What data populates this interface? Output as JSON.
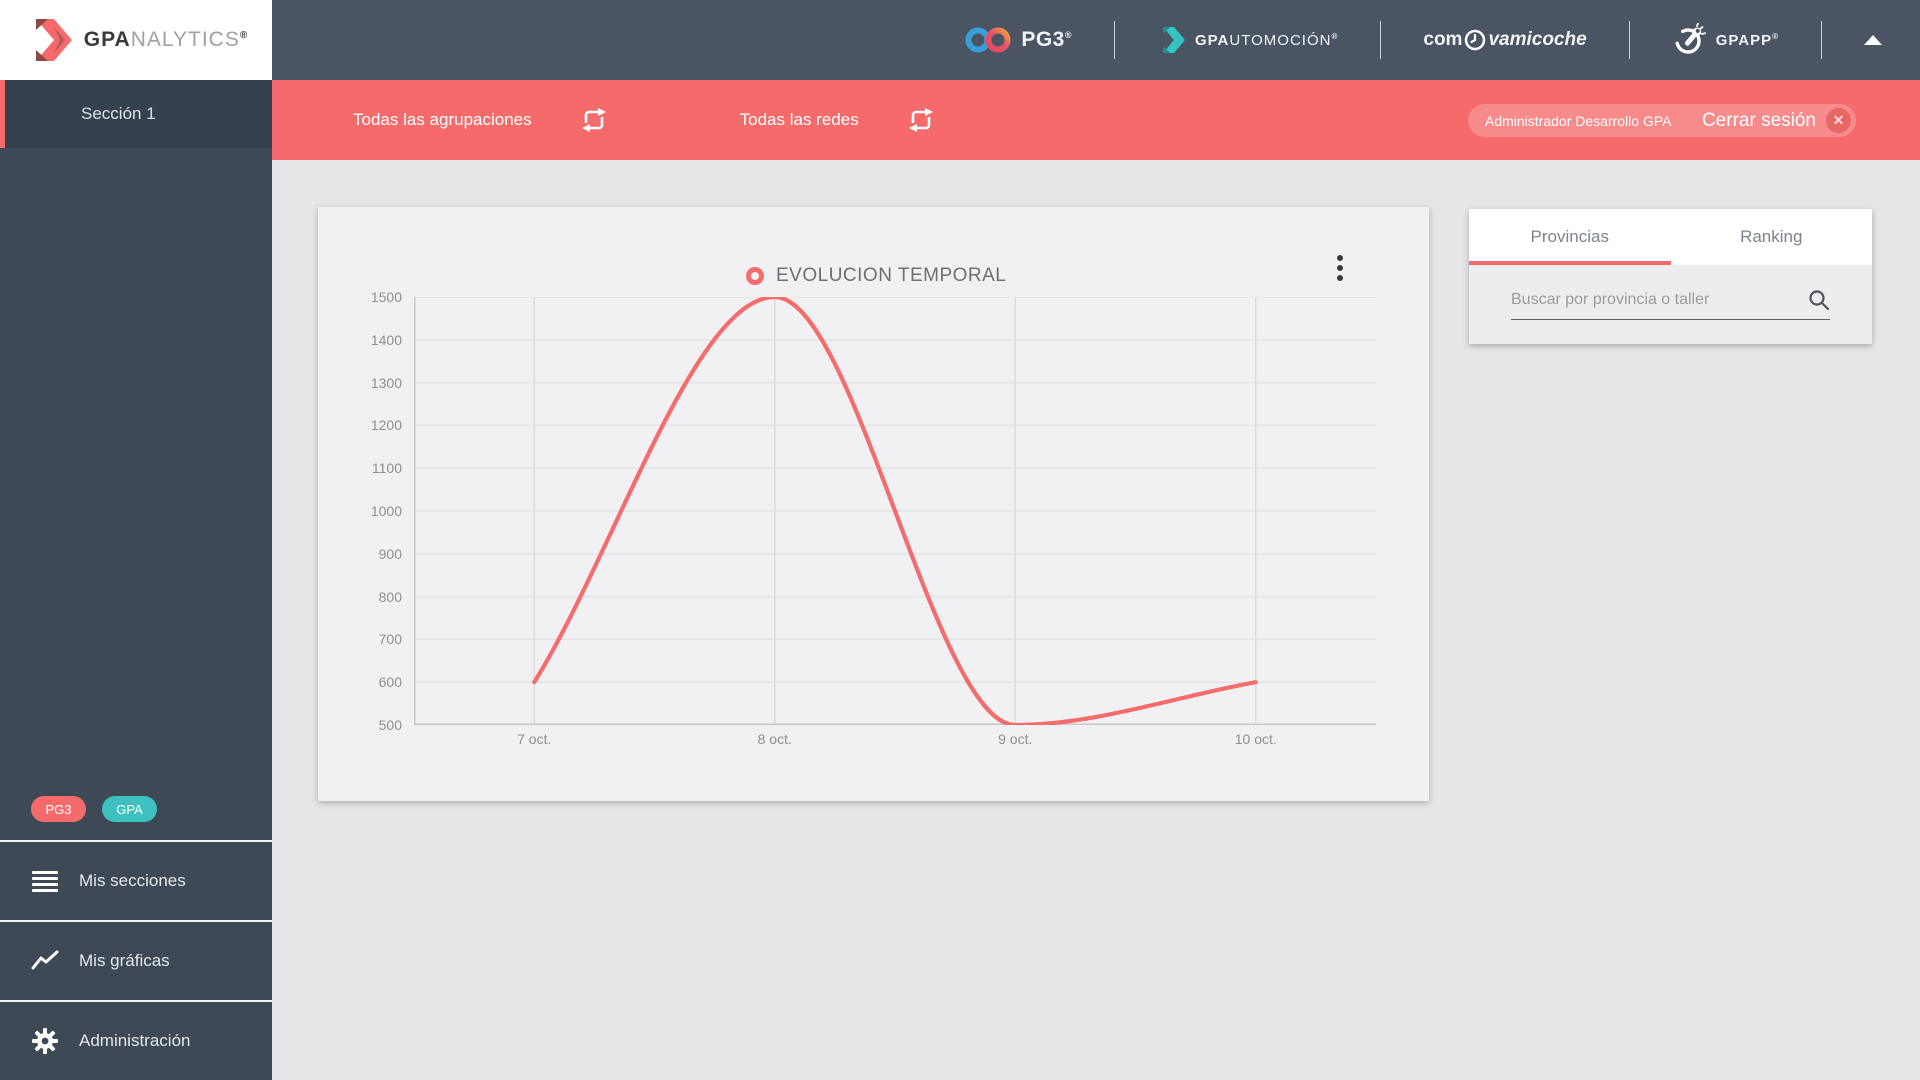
{
  "sidebar": {
    "logo": {
      "bold": "GPA",
      "light": "NALYTICS",
      "registered": "®"
    },
    "section_item": {
      "label": "Sección 1"
    },
    "badges": [
      {
        "label": "PG3",
        "color": "#f56b6b"
      },
      {
        "label": "GPA",
        "color": "#3fc0c0"
      }
    ],
    "menu": [
      {
        "label": "Mis secciones",
        "icon": "list-icon"
      },
      {
        "label": "Mis gráficas",
        "icon": "line-chart-icon"
      },
      {
        "label": "Administración",
        "icon": "gear-icon"
      }
    ]
  },
  "header": {
    "brands": {
      "pg3": {
        "name": "PG3",
        "registered": "®"
      },
      "gpautomocion": {
        "bold": "GPA",
        "light": "UTOMOCIÓN",
        "registered": "®"
      },
      "comprovamicoche": {
        "prefix": "com",
        "suffix": "vamicoche"
      },
      "gpapp": {
        "name": "GPAPP",
        "registered": "®"
      }
    }
  },
  "toolbar": {
    "filters": [
      {
        "label": "Todas las agrupaciones"
      },
      {
        "label": "Todas las redes"
      }
    ],
    "user": "Administrador Desarrollo GPA",
    "logout_label": "Cerrar sesión"
  },
  "panel": {
    "tabs": [
      {
        "label": "Provincias",
        "active": true
      },
      {
        "label": "Ranking",
        "active": false
      }
    ],
    "search_placeholder": "Buscar por provincia o taller"
  },
  "chart_data": {
    "type": "line",
    "title": "EVOLUCION TEMPORAL",
    "categories": [
      "7 oct.",
      "8 oct.",
      "9 oct.",
      "10 oct."
    ],
    "series": [
      {
        "name": "EVOLUCION TEMPORAL",
        "values": [
          600,
          1500,
          500,
          600
        ],
        "color": "#f56c6c"
      }
    ],
    "ylim": [
      500,
      1500
    ],
    "ytick_step": 100,
    "grid": true,
    "legend_position": "top-center",
    "accent_color": "#f56b6b"
  }
}
